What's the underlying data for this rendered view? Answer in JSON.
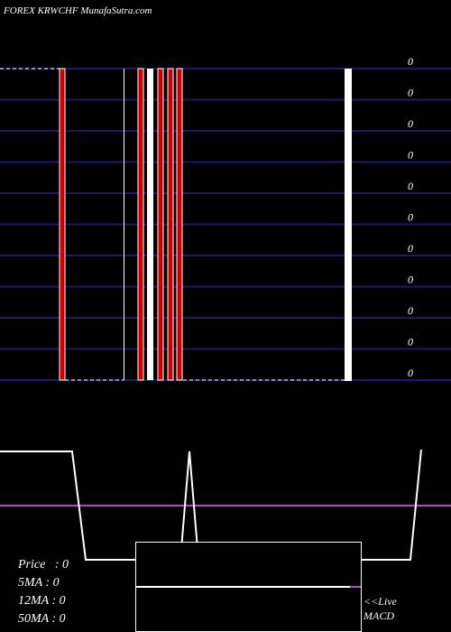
{
  "header": {
    "title": "FOREX  KRWCHF MunafaSutra.com"
  },
  "price_axis": {
    "labels": [
      "0",
      "0",
      "0",
      "0",
      "0",
      "0",
      "0",
      "0",
      "0",
      "0",
      "0"
    ]
  },
  "stats": {
    "lines": [
      "Price   : 0",
      "5MA : 0",
      "12MA : 0",
      "50MA : 0"
    ]
  },
  "macd_panel": {
    "label_lines": [
      "<<Live",
      "MACD"
    ]
  }
}
